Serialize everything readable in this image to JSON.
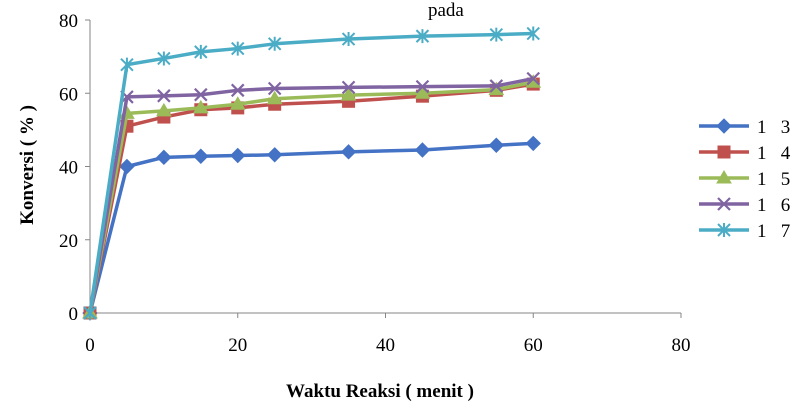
{
  "chart_data": {
    "type": "line",
    "title": "",
    "title_partial": "pada",
    "xlabel": "Waktu Reaksi ( menit )",
    "ylabel": "Konversi ( % )",
    "xlim": [
      0,
      80
    ],
    "ylim": [
      0,
      80
    ],
    "xticks": [
      0,
      20,
      40,
      60,
      80
    ],
    "yticks": [
      0,
      20,
      40,
      60,
      80
    ],
    "grid": false,
    "legend_position": "right",
    "x": [
      0,
      5,
      10,
      15,
      20,
      25,
      35,
      45,
      55,
      60
    ],
    "series": [
      {
        "name": "1   3",
        "marker": "diamond",
        "color": "#4472C4",
        "values": [
          0,
          40,
          42.5,
          42.8,
          43,
          43.2,
          44,
          44.5,
          45.8,
          46.3
        ]
      },
      {
        "name": "1   4",
        "marker": "square",
        "color": "#C0504D",
        "values": [
          0,
          51,
          53.5,
          55.5,
          56,
          57,
          57.8,
          59.2,
          60.8,
          62.5
        ]
      },
      {
        "name": "1   5",
        "marker": "triangle",
        "color": "#9BBB59",
        "values": [
          0,
          54.5,
          55.2,
          56,
          57,
          58.5,
          59.5,
          60,
          61,
          63
        ]
      },
      {
        "name": "1   6",
        "marker": "x",
        "color": "#8064A2",
        "values": [
          0,
          59,
          59.3,
          59.6,
          60.8,
          61.3,
          61.6,
          61.8,
          62,
          64
        ]
      },
      {
        "name": "1   7",
        "marker": "star",
        "color": "#4BACC6",
        "values": [
          0,
          67.8,
          69.5,
          71.3,
          72.2,
          73.5,
          74.8,
          75.6,
          76,
          76.3
        ]
      }
    ]
  }
}
